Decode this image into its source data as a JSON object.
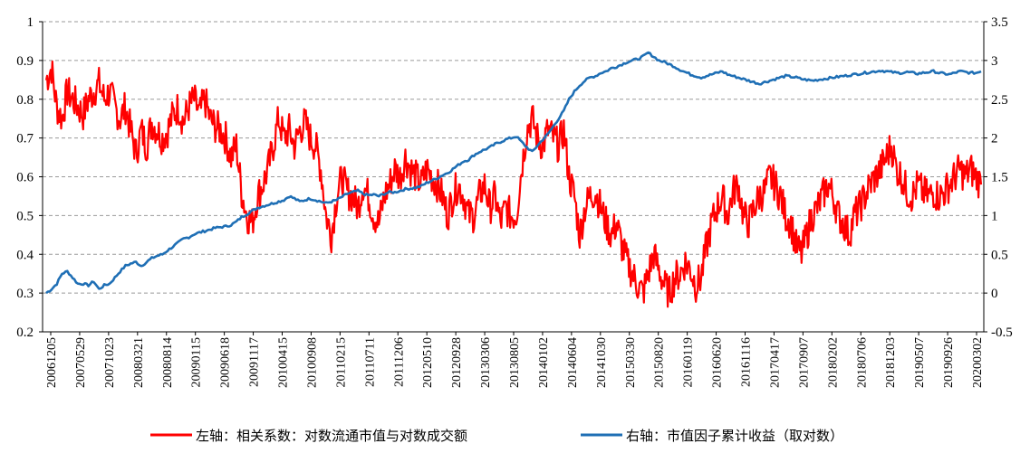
{
  "chart_data": {
    "type": "line",
    "title": "",
    "x_tick_labels": [
      "20061205",
      "20070529",
      "20071023",
      "20080321",
      "20080814",
      "20090115",
      "20090618",
      "20091117",
      "20100415",
      "20100908",
      "20110215",
      "20110711",
      "20111206",
      "20120510",
      "20120928",
      "20130306",
      "20130805",
      "20140102",
      "20140604",
      "20141030",
      "20150330",
      "20150820",
      "20160119",
      "20160620",
      "20161116",
      "20170417",
      "20170907",
      "20180202",
      "20180706",
      "20181203",
      "20190507",
      "20190926",
      "20200302"
    ],
    "left_axis": {
      "ylim": [
        0.2,
        1.0
      ],
      "ticks": [
        "0.2",
        "0.3",
        "0.4",
        "0.5",
        "0.6",
        "0.7",
        "0.8",
        "0.9",
        "1"
      ]
    },
    "right_axis": {
      "ylim": [
        -0.5,
        3.5
      ],
      "ticks": [
        "-0.5",
        "0",
        "0.5",
        "1",
        "1.5",
        "2",
        "2.5",
        "3",
        "3.5"
      ]
    },
    "grid": "horizontal-dashed",
    "legend_position": "bottom",
    "series": [
      {
        "name": "左轴：相关系数：对数流通市值与对数成交额",
        "axis": "left",
        "color": "#ff0000",
        "values": [
          0.85,
          0.88,
          0.78,
          0.75,
          0.82,
          0.8,
          0.78,
          0.76,
          0.8,
          0.82,
          0.84,
          0.8,
          0.82,
          0.78,
          0.75,
          0.78,
          0.72,
          0.66,
          0.72,
          0.68,
          0.74,
          0.72,
          0.7,
          0.72,
          0.76,
          0.78,
          0.74,
          0.78,
          0.8,
          0.76,
          0.8,
          0.75,
          0.73,
          0.72,
          0.7,
          0.65,
          0.68,
          0.56,
          0.5,
          0.48,
          0.55,
          0.58,
          0.62,
          0.68,
          0.75,
          0.7,
          0.72,
          0.68,
          0.72,
          0.74,
          0.7,
          0.68,
          0.62,
          0.5,
          0.45,
          0.55,
          0.6,
          0.56,
          0.55,
          0.52,
          0.58,
          0.55,
          0.5,
          0.48,
          0.55,
          0.58,
          0.62,
          0.6,
          0.65,
          0.62,
          0.6,
          0.58,
          0.62,
          0.6,
          0.58,
          0.55,
          0.5,
          0.55,
          0.58,
          0.55,
          0.5,
          0.5,
          0.55,
          0.58,
          0.52,
          0.55,
          0.48,
          0.52,
          0.5,
          0.5,
          0.62,
          0.72,
          0.75,
          0.7,
          0.68,
          0.72,
          0.7,
          0.68,
          0.72,
          0.6,
          0.55,
          0.45,
          0.52,
          0.55,
          0.56,
          0.52,
          0.48,
          0.45,
          0.48,
          0.42,
          0.38,
          0.35,
          0.32,
          0.3,
          0.35,
          0.4,
          0.36,
          0.32,
          0.3,
          0.34,
          0.35,
          0.38,
          0.36,
          0.32,
          0.34,
          0.42,
          0.48,
          0.52,
          0.55,
          0.5,
          0.56,
          0.58,
          0.5,
          0.48,
          0.52,
          0.55,
          0.56,
          0.6,
          0.58,
          0.55,
          0.5,
          0.48,
          0.42,
          0.4,
          0.45,
          0.5,
          0.52,
          0.55,
          0.58,
          0.55,
          0.5,
          0.48,
          0.45,
          0.5,
          0.52,
          0.55,
          0.58,
          0.6,
          0.62,
          0.65,
          0.68,
          0.62,
          0.6,
          0.56,
          0.55,
          0.58,
          0.56,
          0.55,
          0.56,
          0.55,
          0.56,
          0.58,
          0.6,
          0.62,
          0.6,
          0.62,
          0.6,
          0.58
        ]
      },
      {
        "name": "右轴：市值因子累计收益（取对数）",
        "axis": "right",
        "color": "#1f6fb5",
        "values": [
          0,
          0.05,
          0.12,
          0.25,
          0.28,
          0.2,
          0.12,
          0.12,
          0.1,
          0.15,
          0.05,
          0.1,
          0.12,
          0.2,
          0.28,
          0.35,
          0.38,
          0.4,
          0.35,
          0.4,
          0.45,
          0.48,
          0.5,
          0.55,
          0.6,
          0.65,
          0.7,
          0.72,
          0.76,
          0.78,
          0.8,
          0.82,
          0.84,
          0.85,
          0.86,
          0.88,
          0.92,
          0.98,
          1.02,
          1.06,
          1.1,
          1.12,
          1.14,
          1.16,
          1.18,
          1.2,
          1.25,
          1.22,
          1.18,
          1.2,
          1.22,
          1.2,
          1.18,
          1.16,
          1.18,
          1.2,
          1.24,
          1.28,
          1.3,
          1.32,
          1.28,
          1.26,
          1.27,
          1.25,
          1.28,
          1.3,
          1.3,
          1.32,
          1.34,
          1.35,
          1.36,
          1.38,
          1.42,
          1.45,
          1.48,
          1.52,
          1.55,
          1.6,
          1.65,
          1.7,
          1.72,
          1.78,
          1.82,
          1.85,
          1.88,
          1.92,
          1.95,
          1.98,
          2.0,
          2.02,
          1.95,
          1.88,
          1.82,
          1.9,
          1.98,
          2.05,
          2.15,
          2.25,
          2.35,
          2.5,
          2.6,
          2.68,
          2.74,
          2.78,
          2.8,
          2.84,
          2.86,
          2.9,
          2.92,
          2.95,
          2.98,
          3.0,
          3.02,
          3.05,
          3.1,
          3.05,
          3.0,
          2.98,
          2.95,
          2.92,
          2.88,
          2.85,
          2.82,
          2.8,
          2.78,
          2.8,
          2.82,
          2.84,
          2.86,
          2.82,
          2.8,
          2.78,
          2.76,
          2.74,
          2.72,
          2.7,
          2.72,
          2.74,
          2.76,
          2.78,
          2.8,
          2.79,
          2.78,
          2.76,
          2.75,
          2.74,
          2.75,
          2.76,
          2.77,
          2.78,
          2.79,
          2.8,
          2.81,
          2.82,
          2.83,
          2.84,
          2.85,
          2.86,
          2.87,
          2.86,
          2.85,
          2.84,
          2.84,
          2.85,
          2.84,
          2.83,
          2.84,
          2.85,
          2.86,
          2.84,
          2.83,
          2.82,
          2.84,
          2.86,
          2.85,
          2.84,
          2.84,
          2.86
        ]
      }
    ]
  }
}
